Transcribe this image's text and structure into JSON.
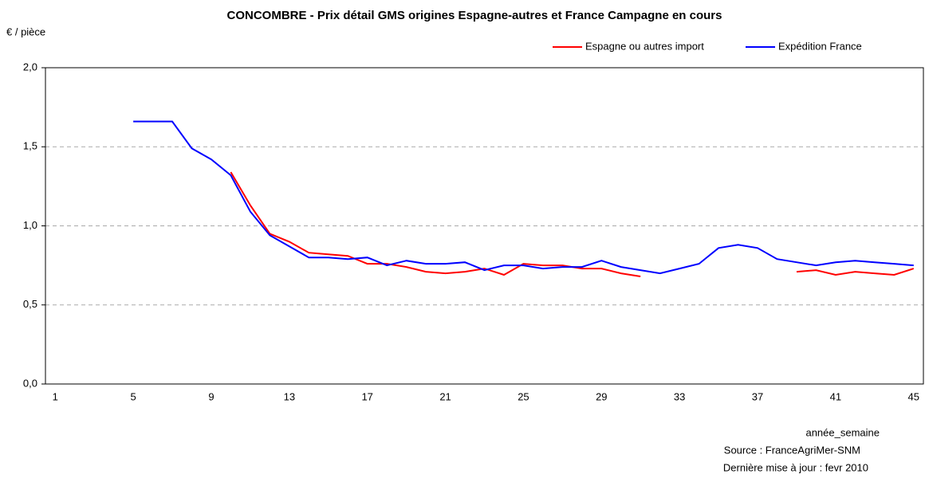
{
  "chart_data": {
    "type": "line",
    "title": "CONCOMBRE - Prix détail  GMS origines Espagne-autres  et  France Campagne en cours",
    "y_label": "€ / pièce",
    "x_label": "année_semaine",
    "source": "Source : FranceAgriMer-SNM",
    "update_note": "Dernière mise à jour : fevr 2010",
    "categories": [
      "1",
      null,
      null,
      null,
      "5",
      null,
      null,
      null,
      "9",
      null,
      null,
      null,
      "13",
      null,
      null,
      null,
      "17",
      null,
      null,
      null,
      "21",
      null,
      null,
      null,
      "25",
      null,
      null,
      null,
      "29",
      null,
      null,
      null,
      "33",
      null,
      null,
      null,
      "37",
      null,
      null,
      null,
      "41",
      null,
      null,
      null,
      "45"
    ],
    "series": [
      {
        "name": "Espagne ou autres import",
        "color": "#ff0000",
        "values": [
          null,
          null,
          null,
          null,
          null,
          null,
          null,
          null,
          null,
          1.34,
          1.13,
          0.95,
          0.9,
          0.83,
          0.82,
          0.81,
          0.76,
          0.76,
          0.74,
          0.71,
          0.7,
          0.71,
          0.73,
          0.69,
          0.76,
          0.75,
          0.75,
          0.73,
          0.73,
          0.7,
          0.68,
          null,
          null,
          null,
          null,
          null,
          null,
          null,
          0.71,
          0.72,
          0.69,
          0.71,
          0.7,
          0.69,
          0.73
        ]
      },
      {
        "name": "Expédition France",
        "color": "#0000ff",
        "values": [
          null,
          null,
          null,
          null,
          1.66,
          1.66,
          1.66,
          1.49,
          1.42,
          1.32,
          1.09,
          0.94,
          0.87,
          0.8,
          0.8,
          0.79,
          0.8,
          0.75,
          0.78,
          0.76,
          0.76,
          0.77,
          0.72,
          0.75,
          0.75,
          0.73,
          0.74,
          0.74,
          0.78,
          0.74,
          0.72,
          0.7,
          0.73,
          0.76,
          0.86,
          0.88,
          0.86,
          0.79,
          0.77,
          0.75,
          0.77,
          0.78,
          0.77,
          0.76,
          0.75
        ]
      }
    ],
    "ylim": [
      0,
      2
    ],
    "yticks": [
      {
        "value": 0,
        "label": "0,0"
      },
      {
        "value": 0.5,
        "label": "0,5"
      },
      {
        "value": 1,
        "label": "1,0"
      },
      {
        "value": 1.5,
        "label": "1,5"
      },
      {
        "value": 2,
        "label": "2,0"
      }
    ],
    "grid": true,
    "legend": "top-right"
  }
}
